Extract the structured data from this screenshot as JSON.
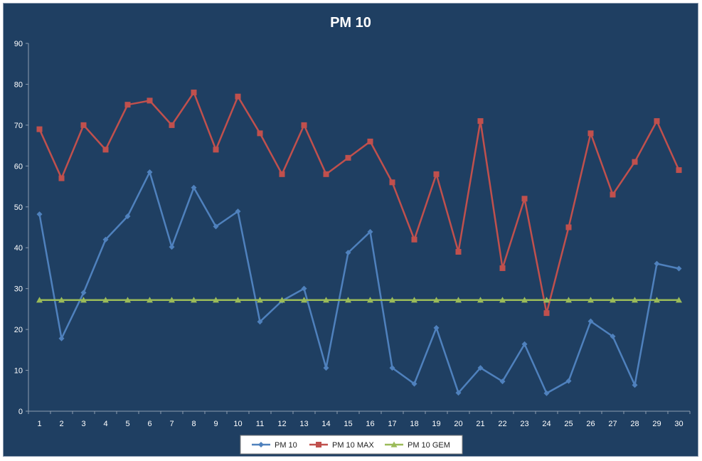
{
  "chart_data": {
    "type": "line",
    "title": "PM 10",
    "xlabel": "",
    "ylabel": "",
    "x": [
      1,
      2,
      3,
      4,
      5,
      6,
      7,
      8,
      9,
      10,
      11,
      12,
      13,
      14,
      15,
      16,
      17,
      18,
      19,
      20,
      21,
      22,
      23,
      24,
      25,
      26,
      27,
      28,
      29,
      30
    ],
    "ylim": [
      0,
      90
    ],
    "yticks": [
      0,
      10,
      20,
      30,
      40,
      50,
      60,
      70,
      80,
      90
    ],
    "grid": false,
    "legend_position": "bottom",
    "series": [
      {
        "name": "PM 10",
        "color": "#4F81BD",
        "marker": "diamond",
        "values": [
          48.2,
          17.8,
          29,
          42,
          47.7,
          58.5,
          40.2,
          54.7,
          45.2,
          48.9,
          21.9,
          27,
          30,
          10.6,
          38.8,
          43.9,
          10.6,
          6.7,
          20.4,
          4.5,
          10.6,
          7.3,
          16.4,
          4.4,
          7.4,
          22,
          18.3,
          6.4,
          36.1,
          34.9
        ]
      },
      {
        "name": "PM 10 MAX",
        "color": "#C0504D",
        "marker": "square",
        "values": [
          69,
          57,
          70,
          64,
          75,
          76,
          70,
          78,
          64,
          77,
          68,
          58,
          70,
          58,
          62,
          66,
          56,
          42,
          58,
          39,
          71,
          35,
          52,
          24,
          45,
          68,
          53,
          61,
          71,
          59
        ]
      },
      {
        "name": "PM 10 GEM",
        "color": "#9BBB59",
        "marker": "triangle",
        "values": [
          27.2,
          27.2,
          27.2,
          27.2,
          27.2,
          27.2,
          27.2,
          27.2,
          27.2,
          27.2,
          27.2,
          27.2,
          27.2,
          27.2,
          27.2,
          27.2,
          27.2,
          27.2,
          27.2,
          27.2,
          27.2,
          27.2,
          27.2,
          27.2,
          27.2,
          27.2,
          27.2,
          27.2,
          27.2,
          27.2
        ]
      }
    ]
  }
}
